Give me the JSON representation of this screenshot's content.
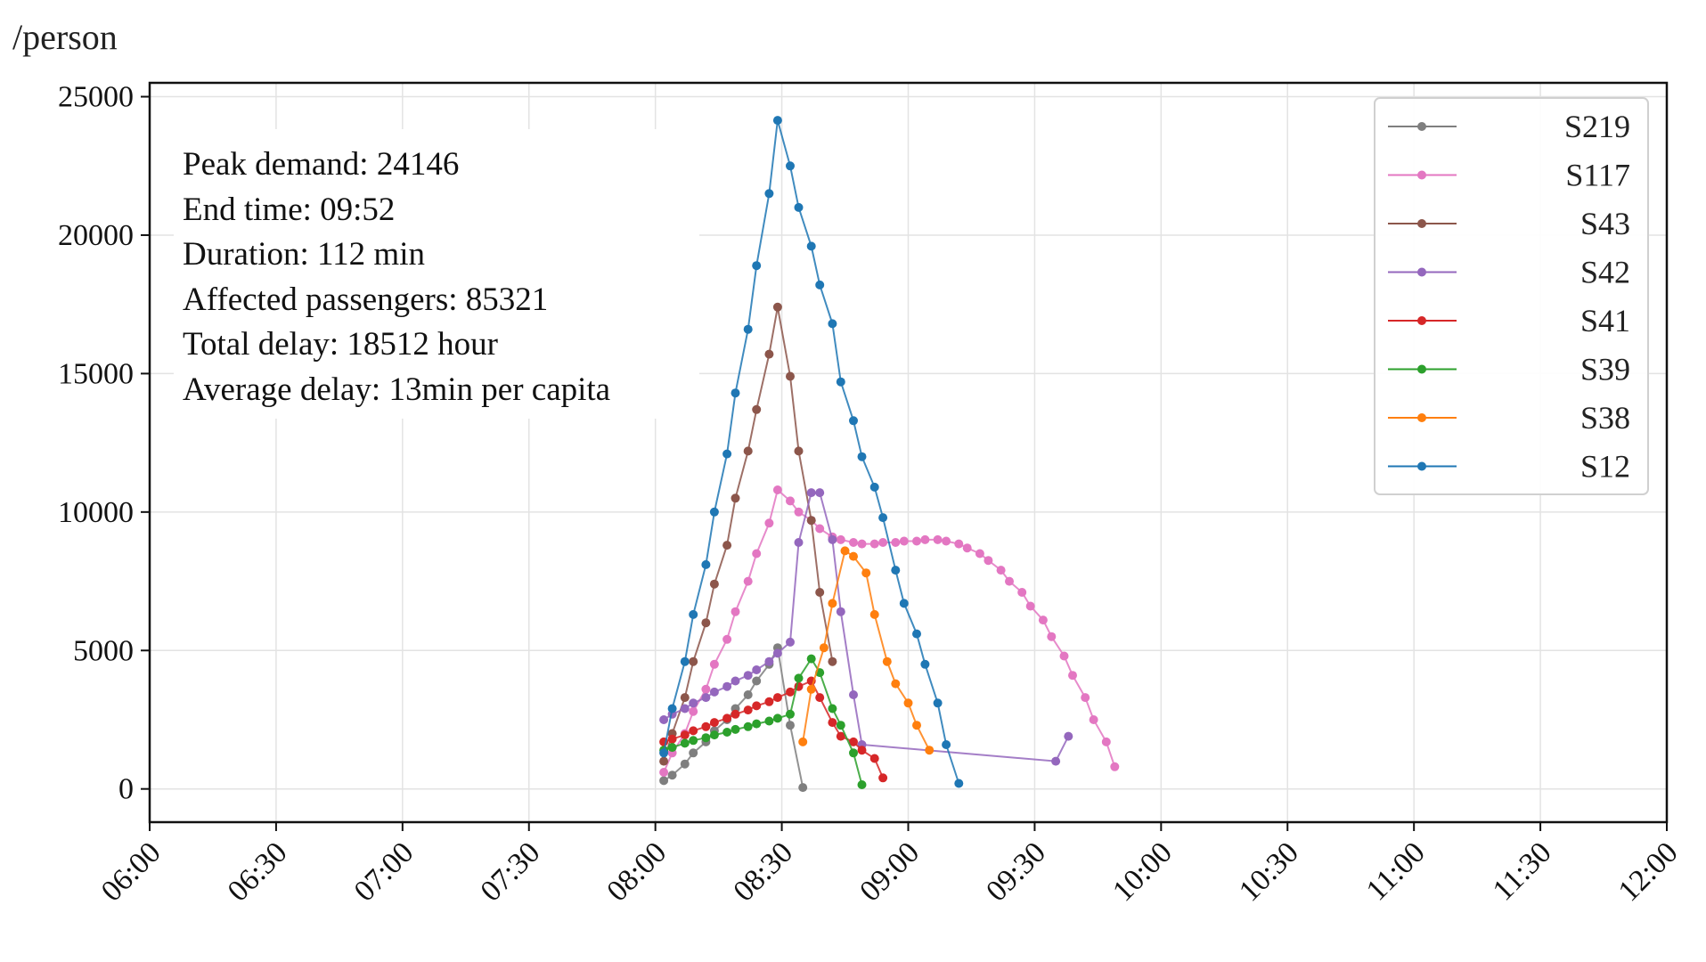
{
  "chart_data": {
    "type": "line",
    "ylabel": "/person",
    "ylim": [
      -1200,
      25500
    ],
    "yticks": [
      0,
      5000,
      10000,
      15000,
      20000,
      25000
    ],
    "xlim": [
      "06:00",
      "12:00"
    ],
    "xticks": [
      "06:00",
      "06:30",
      "07:00",
      "07:30",
      "08:00",
      "08:30",
      "09:00",
      "09:30",
      "10:00",
      "10:30",
      "11:00",
      "11:30",
      "12:00"
    ],
    "grid": true,
    "legend_position": "top-right",
    "annotations": [
      "Peak demand: 24146",
      "End time: 09:52",
      "Duration: 112 min",
      "Affected passengers: 85321",
      "Total delay: 18512 hour",
      "Average delay: 13min per capita"
    ],
    "series": [
      {
        "name": "S219",
        "color": "#7f7f7f",
        "x": [
          "08:02",
          "08:04",
          "08:07",
          "08:09",
          "08:12",
          "08:14",
          "08:17",
          "08:19",
          "08:22",
          "08:24",
          "08:27",
          "08:29",
          "08:32",
          "08:35"
        ],
        "y": [
          300,
          500,
          900,
          1300,
          1700,
          2100,
          2500,
          2900,
          3400,
          3900,
          4500,
          5100,
          2300,
          50
        ]
      },
      {
        "name": "S117",
        "color": "#e377c2",
        "x": [
          "08:02",
          "08:04",
          "08:07",
          "08:09",
          "08:12",
          "08:14",
          "08:17",
          "08:19",
          "08:22",
          "08:24",
          "08:27",
          "08:29",
          "08:32",
          "08:34",
          "08:37",
          "08:39",
          "08:42",
          "08:44",
          "08:47",
          "08:49",
          "08:52",
          "08:54",
          "08:57",
          "08:59",
          "09:02",
          "09:04",
          "09:07",
          "09:09",
          "09:12",
          "09:14",
          "09:17",
          "09:19",
          "09:22",
          "09:24",
          "09:27",
          "09:29",
          "09:32",
          "09:34",
          "09:37",
          "09:39",
          "09:42",
          "09:44",
          "09:47",
          "09:49",
          "09:52"
        ],
        "y": [
          600,
          1300,
          2000,
          2800,
          3600,
          4500,
          5400,
          6400,
          7500,
          8500,
          9600,
          10800,
          10400,
          10000,
          9700,
          9400,
          9100,
          9000,
          8900,
          8850,
          8850,
          8900,
          8900,
          8950,
          8950,
          9000,
          9000,
          8950,
          8850,
          8700,
          8500,
          8250,
          7900,
          7500,
          7100,
          6600,
          6100,
          5500,
          4800,
          4100,
          3300,
          2500,
          1700,
          800,
          null
        ]
      },
      {
        "name": "S43",
        "color": "#8c564b",
        "x": [
          "08:02",
          "08:04",
          "08:07",
          "08:09",
          "08:12",
          "08:14",
          "08:17",
          "08:19",
          "08:22",
          "08:24",
          "08:27",
          "08:29",
          "08:32",
          "08:34",
          "08:37",
          "08:39",
          "08:42",
          "08:44"
        ],
        "y": [
          1000,
          2000,
          3300,
          4600,
          6000,
          7400,
          8800,
          10500,
          12200,
          13700,
          15700,
          17400,
          14900,
          12200,
          9700,
          7100,
          4600,
          null
        ]
      },
      {
        "name": "S42",
        "color": "#9467bd",
        "x": [
          "08:02",
          "08:04",
          "08:07",
          "08:09",
          "08:12",
          "08:14",
          "08:17",
          "08:19",
          "08:22",
          "08:24",
          "08:27",
          "08:29",
          "08:32",
          "08:34",
          "08:37",
          "08:39",
          "08:42",
          "08:44",
          "08:47",
          "08:49",
          "09:35",
          "09:38"
        ],
        "y": [
          2500,
          2700,
          2900,
          3100,
          3300,
          3500,
          3700,
          3900,
          4100,
          4300,
          4600,
          4900,
          5300,
          8900,
          10700,
          10700,
          9000,
          6400,
          3400,
          1600,
          1000,
          1900
        ]
      },
      {
        "name": "S41",
        "color": "#d62728",
        "x": [
          "08:02",
          "08:04",
          "08:07",
          "08:09",
          "08:12",
          "08:14",
          "08:17",
          "08:19",
          "08:22",
          "08:24",
          "08:27",
          "08:29",
          "08:32",
          "08:34",
          "08:37",
          "08:39",
          "08:42",
          "08:44",
          "08:47",
          "08:49",
          "08:52",
          "08:54"
        ],
        "y": [
          1700,
          1800,
          1950,
          2100,
          2250,
          2400,
          2550,
          2700,
          2850,
          3000,
          3150,
          3300,
          3500,
          3700,
          3900,
          3300,
          2400,
          1900,
          1700,
          1400,
          1100,
          400
        ]
      },
      {
        "name": "S39",
        "color": "#2ca02c",
        "x": [
          "08:02",
          "08:04",
          "08:07",
          "08:09",
          "08:12",
          "08:14",
          "08:17",
          "08:19",
          "08:22",
          "08:24",
          "08:27",
          "08:29",
          "08:32",
          "08:34",
          "08:37",
          "08:39",
          "08:42",
          "08:44",
          "08:47",
          "08:49"
        ],
        "y": [
          1400,
          1500,
          1650,
          1750,
          1850,
          1950,
          2050,
          2150,
          2250,
          2350,
          2450,
          2550,
          2700,
          4000,
          4700,
          4200,
          2900,
          2300,
          1300,
          150
        ]
      },
      {
        "name": "S38",
        "color": "#ff7f0e",
        "x": [
          "08:35",
          "08:37",
          "08:40",
          "08:42",
          "08:45",
          "08:47",
          "08:50",
          "08:52",
          "08:55",
          "08:57",
          "09:00",
          "09:02",
          "09:05"
        ],
        "y": [
          1700,
          3600,
          5100,
          6700,
          8600,
          8400,
          7800,
          6300,
          4600,
          3800,
          3100,
          2300,
          1400
        ]
      },
      {
        "name": "S12",
        "color": "#1f77b4",
        "x": [
          "08:02",
          "08:04",
          "08:07",
          "08:09",
          "08:12",
          "08:14",
          "08:17",
          "08:19",
          "08:22",
          "08:24",
          "08:27",
          "08:29",
          "08:32",
          "08:34",
          "08:37",
          "08:39",
          "08:42",
          "08:44",
          "08:47",
          "08:49",
          "08:52",
          "08:54",
          "08:57",
          "08:59",
          "09:02",
          "09:04",
          "09:07",
          "09:09",
          "09:12",
          "09:14",
          "09:17"
        ],
        "y": [
          1300,
          2900,
          4600,
          6300,
          8100,
          10000,
          12100,
          14300,
          16600,
          18900,
          21500,
          24146,
          22500,
          21000,
          19600,
          18200,
          16800,
          14700,
          13300,
          12000,
          10900,
          9800,
          7900,
          6700,
          5600,
          4500,
          3100,
          1600,
          200,
          null,
          null
        ]
      }
    ]
  }
}
